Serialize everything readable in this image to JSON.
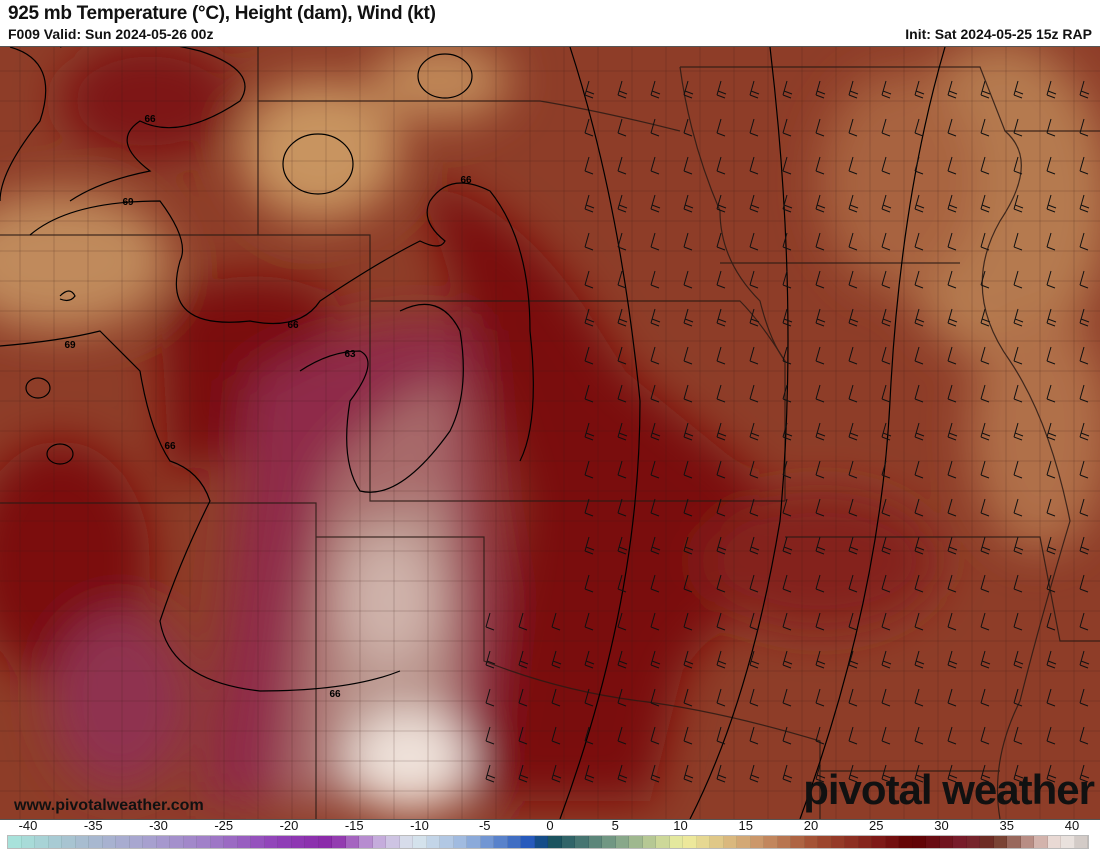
{
  "header": {
    "title": "925 mb Temperature (°C), Height (dam), Wind (kt)",
    "valid": "F009 Valid: Sun 2024-05-26 00z",
    "init": "Init: Sat 2024-05-25 15z RAP"
  },
  "map": {
    "contour_labels": [
      {
        "text": "66"
      },
      {
        "text": "66"
      },
      {
        "text": "66"
      },
      {
        "text": "66"
      },
      {
        "text": "66"
      },
      {
        "text": "69"
      },
      {
        "text": "69"
      },
      {
        "text": "63"
      }
    ],
    "colors": {
      "maroon": "#7a0f0f",
      "dark_red": "#8c1a14",
      "brown": "#8e3d28",
      "tan": "#c48c5c",
      "magenta": "#8f2a4a",
      "pink_gray": "#b9948c",
      "light": "#efe2da"
    }
  },
  "watermark": {
    "site": "www.pivotalweather.com",
    "logo": "pivotal weather"
  },
  "colorbar": {
    "ticks": [
      "-40",
      "-35",
      "-30",
      "-25",
      "-20",
      "-15",
      "-10",
      "-5",
      "0",
      "5",
      "10",
      "15",
      "20",
      "25",
      "30",
      "35",
      "40"
    ],
    "min": -40,
    "max": 40,
    "stops": [
      {
        "t": -40,
        "c": "#a8e6dc"
      },
      {
        "t": -35,
        "c": "#a8c0d0"
      },
      {
        "t": -30,
        "c": "#a8a4d0"
      },
      {
        "t": -25,
        "c": "#a07cc8"
      },
      {
        "t": -20,
        "c": "#9040b8"
      },
      {
        "t": -16,
        "c": "#8a28a8"
      },
      {
        "t": -13,
        "c": "#c0a0d8"
      },
      {
        "t": -10,
        "c": "#dce8ee"
      },
      {
        "t": -6,
        "c": "#98b4de"
      },
      {
        "t": -1,
        "c": "#1a50b8"
      },
      {
        "t": 0,
        "c": "#104a5a"
      },
      {
        "t": 5,
        "c": "#7ca088"
      },
      {
        "t": 10,
        "c": "#f0f0a0"
      },
      {
        "t": 15,
        "c": "#d0a070"
      },
      {
        "t": 20,
        "c": "#a04a30"
      },
      {
        "t": 25,
        "c": "#7a1414"
      },
      {
        "t": 27,
        "c": "#5e0000"
      },
      {
        "t": 31,
        "c": "#7a2030"
      },
      {
        "t": 33,
        "c": "#6a3020"
      },
      {
        "t": 36,
        "c": "#c8a098"
      },
      {
        "t": 38,
        "c": "#f4ece8"
      },
      {
        "t": 40,
        "c": "#c8c0bc"
      }
    ]
  }
}
